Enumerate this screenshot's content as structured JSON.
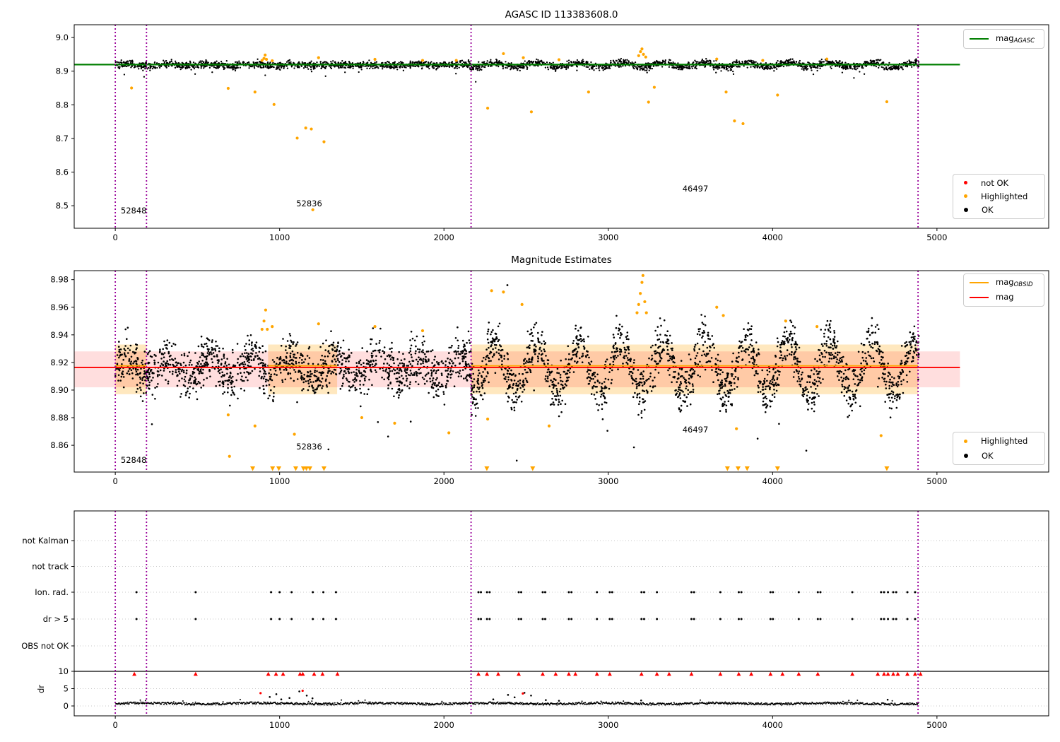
{
  "figure": {
    "background": "#ffffff"
  },
  "colors": {
    "ok": "#000000",
    "not_ok": "#ff0000",
    "highlighted": "#ffa500",
    "mag_agasc": "#007f00",
    "mag": "#ff0000",
    "mag_obsid": "#ffa500",
    "vline": "#990099",
    "grid": "#c8c8c8",
    "axis": "#000000"
  },
  "chart_data": [
    {
      "type": "scatter",
      "title": "AGASC ID 113383608.0",
      "xlim": [
        -250,
        5680
      ],
      "ylim": [
        8.433,
        9.038
      ],
      "xticks": {
        "values": [
          0,
          1000,
          2000,
          3000,
          4000,
          5000
        ],
        "labels": [
          "0",
          "1000",
          "2000",
          "3000",
          "4000",
          "5000"
        ]
      },
      "yticks": {
        "values": [
          8.5,
          8.6,
          8.7,
          8.8,
          8.9,
          9.0
        ],
        "labels": [
          "8.5",
          "8.6",
          "8.7",
          "8.8",
          "8.9",
          "9.0"
        ]
      },
      "vlines": [
        0,
        190,
        2165,
        4885
      ],
      "bands": [],
      "lines": [
        {
          "x0": -250,
          "x1": 5140,
          "y": 8.9195,
          "color": "#007f00",
          "width": 2.2,
          "name": "mag_AGASC"
        }
      ],
      "ok_series": {
        "seed": 101,
        "count": 2800,
        "x0": 0,
        "x1": 4890,
        "base": 8.9185,
        "amp_before": 0.0025,
        "amp_after": 0.0062,
        "period": 255,
        "split_x": 2165,
        "noise_std": 0.0055,
        "r": 1.15
      },
      "ok_extra": [],
      "not_ok_points": [],
      "highlighted_points": [
        [
          99,
          8.85
        ],
        [
          687,
          8.849
        ],
        [
          850,
          8.838
        ],
        [
          966,
          8.801
        ],
        [
          1107,
          8.701
        ],
        [
          1159,
          8.731
        ],
        [
          1193,
          8.728
        ],
        [
          1202,
          8.488
        ],
        [
          1270,
          8.69
        ],
        [
          2266,
          8.79
        ],
        [
          2532,
          8.779
        ],
        [
          2880,
          8.838
        ],
        [
          3245,
          8.808
        ],
        [
          3280,
          8.852
        ],
        [
          3717,
          8.838
        ],
        [
          3768,
          8.752
        ],
        [
          3820,
          8.744
        ],
        [
          4030,
          8.829
        ],
        [
          4695,
          8.809
        ],
        [
          893,
          8.932
        ],
        [
          905,
          8.938
        ],
        [
          912,
          8.948
        ],
        [
          920,
          8.935
        ],
        [
          955,
          8.931
        ],
        [
          1237,
          8.94
        ],
        [
          1580,
          8.935
        ],
        [
          1870,
          8.932
        ],
        [
          2075,
          8.932
        ],
        [
          2362,
          8.952
        ],
        [
          2483,
          8.94
        ],
        [
          2700,
          8.934
        ],
        [
          3185,
          8.946
        ],
        [
          3196,
          8.958
        ],
        [
          3205,
          8.966
        ],
        [
          3214,
          8.95
        ],
        [
          3228,
          8.942
        ],
        [
          3660,
          8.936
        ],
        [
          3940,
          8.932
        ],
        [
          4330,
          8.936
        ]
      ],
      "clipped_low_x": [],
      "annotations": [
        {
          "text": "52848",
          "x": 112,
          "y": 8.4855
        },
        {
          "text": "52836",
          "x": 1180,
          "y": 8.5065
        },
        {
          "text": "46497",
          "x": 3530,
          "y": 8.5506
        }
      ],
      "legend_lines": {
        "items": [
          {
            "main": "mag",
            "sub": "AGASC",
            "color": "#007f00"
          }
        ]
      },
      "legend_markers": {
        "items": [
          {
            "label": "not OK",
            "color": "#ff0000"
          },
          {
            "label": "Highlighted",
            "color": "#ffa500"
          },
          {
            "label": "OK",
            "color": "#000000"
          }
        ]
      }
    },
    {
      "type": "scatter",
      "title": "Magnitude Estimates",
      "xlim": [
        -250,
        5680
      ],
      "ylim": [
        8.8406,
        8.9865
      ],
      "xticks": {
        "values": [
          0,
          1000,
          2000,
          3000,
          4000,
          5000
        ],
        "labels": [
          "0",
          "1000",
          "2000",
          "3000",
          "4000",
          "5000"
        ]
      },
      "yticks": {
        "values": [
          8.86,
          8.88,
          8.9,
          8.92,
          8.94,
          8.96,
          8.98
        ],
        "labels": [
          "8.86",
          "8.88",
          "8.90",
          "8.92",
          "8.94",
          "8.96",
          "8.98"
        ]
      },
      "vlines": [
        0,
        190,
        2165,
        4885
      ],
      "bands": [
        {
          "x0": 0,
          "x1": 190,
          "y0": 8.897,
          "y1": 8.933,
          "color": "rgba(255,165,0,0.25)"
        },
        {
          "x0": 930,
          "x1": 1350,
          "y0": 8.897,
          "y1": 8.933,
          "color": "rgba(255,165,0,0.25)"
        },
        {
          "x0": 2165,
          "x1": 4885,
          "y0": 8.897,
          "y1": 8.933,
          "color": "rgba(255,165,0,0.25)"
        },
        {
          "x0": -250,
          "x1": 5140,
          "y0": 8.902,
          "y1": 8.928,
          "color": "rgba(255,0,0,0.13)"
        }
      ],
      "lines": [
        {
          "x0": -250,
          "x1": 5140,
          "y": 8.9164,
          "color": "#ff0000",
          "width": 1.8,
          "name": "mag"
        },
        {
          "x0": 0,
          "x1": 190,
          "y": 8.9176,
          "color": "#ffa500",
          "width": 1.8,
          "name": "mag_OBSID"
        },
        {
          "x0": 930,
          "x1": 1350,
          "y": 8.9176,
          "color": "#ffa500",
          "width": 1.8,
          "name": "mag_OBSID"
        },
        {
          "x0": 2165,
          "x1": 4885,
          "y": 8.9176,
          "color": "#ffa500",
          "width": 1.8,
          "name": "mag_OBSID"
        }
      ],
      "ok_series": {
        "seed": 202,
        "count": 3300,
        "x0": 0,
        "x1": 4890,
        "base": 8.9165,
        "amp_before": 0.0075,
        "amp_after": 0.0175,
        "period": 255,
        "split_x": 2165,
        "noise_std": 0.0085,
        "ymin": 8.842,
        "ymax": 8.9862,
        "r": 1.3
      },
      "ok_extra": [
        [
          2386,
          8.976
        ]
      ],
      "not_ok_points": [],
      "highlighted_points": [
        [
          893,
          8.944
        ],
        [
          905,
          8.95
        ],
        [
          915,
          8.958
        ],
        [
          925,
          8.944
        ],
        [
          955,
          8.946
        ],
        [
          1237,
          8.948
        ],
        [
          1580,
          8.946
        ],
        [
          1870,
          8.943
        ],
        [
          2290,
          8.972
        ],
        [
          2362,
          8.971
        ],
        [
          2475,
          8.962
        ],
        [
          3175,
          8.956
        ],
        [
          3185,
          8.962
        ],
        [
          3195,
          8.97
        ],
        [
          3205,
          8.978
        ],
        [
          3211,
          8.983
        ],
        [
          3222,
          8.964
        ],
        [
          3232,
          8.956
        ],
        [
          3660,
          8.96
        ],
        [
          3700,
          8.954
        ],
        [
          4080,
          8.95
        ],
        [
          4270,
          8.946
        ],
        [
          687,
          8.882
        ],
        [
          695,
          8.852
        ],
        [
          850,
          8.874
        ],
        [
          1090,
          8.868
        ],
        [
          1500,
          8.88
        ],
        [
          1700,
          8.876
        ],
        [
          2030,
          8.869
        ],
        [
          2266,
          8.879
        ],
        [
          2640,
          8.874
        ],
        [
          3780,
          8.872
        ],
        [
          4660,
          8.867
        ]
      ],
      "clipped_low_x": [
        836,
        957,
        995,
        1098,
        1145,
        1163,
        1184,
        1270,
        2261,
        2540,
        3725,
        3790,
        3845,
        4030,
        4695
      ],
      "annotations": [
        {
          "text": "52848",
          "x": 112,
          "y": 8.8493
        },
        {
          "text": "52836",
          "x": 1180,
          "y": 8.859
        },
        {
          "text": "46497",
          "x": 3530,
          "y": 8.8713
        }
      ],
      "legend_lines": {
        "items": [
          {
            "main": "mag",
            "sub": "OBSID",
            "color": "#ffa500"
          },
          {
            "main": "mag",
            "sub": "",
            "color": "#ff0000"
          }
        ]
      },
      "legend_markers": {
        "items": [
          {
            "label": "Highlighted",
            "color": "#ffa500"
          },
          {
            "label": "OK",
            "color": "#000000"
          }
        ]
      }
    },
    {
      "type": "flags",
      "xlim": [
        -250,
        5680
      ],
      "xticks": {
        "values": [
          0,
          1000,
          2000,
          3000,
          4000,
          5000
        ],
        "labels": [
          "0",
          "1000",
          "2000",
          "3000",
          "4000",
          "5000"
        ]
      },
      "vlines": [
        0,
        190,
        2165,
        4885
      ],
      "rows": [
        {
          "label": "not Kalman",
          "x": []
        },
        {
          "label": "not track",
          "x": []
        },
        {
          "label": "Ion. rad.",
          "x": [
            129,
            489,
            948,
            1000,
            1073,
            1202,
            1266,
            1343,
            2210,
            2225,
            2262,
            2278,
            2455,
            2470,
            2601,
            2616,
            2760,
            2776,
            2931,
            3009,
            3024,
            3202,
            3218,
            3296,
            3506,
            3522,
            3682,
            3794,
            3810,
            3987,
            4002,
            4159,
            4275,
            4291,
            4485,
            4660,
            4678,
            4702,
            4734,
            4752,
            4820,
            4867
          ]
        },
        {
          "label": "dr > 5",
          "x": [
            129,
            489,
            948,
            1000,
            1073,
            1202,
            1266,
            1343,
            2210,
            2225,
            2262,
            2278,
            2455,
            2470,
            2601,
            2616,
            2760,
            2776,
            2931,
            3009,
            3024,
            3202,
            3218,
            3296,
            3506,
            3522,
            3682,
            3794,
            3810,
            3987,
            4002,
            4159,
            4275,
            4291,
            4485,
            4660,
            4678,
            4702,
            4734,
            4752,
            4820,
            4867
          ]
        },
        {
          "label": "OBS not OK",
          "x": []
        }
      ],
      "dr": {
        "ylabel": "dr",
        "ticks": {
          "values": [
            10,
            5,
            0
          ],
          "labels": [
            "10",
            "5",
            "0"
          ]
        },
        "hline": 10,
        "triangle_y": 9.2,
        "trace": {
          "seed": 303,
          "x0": 0,
          "x1": 4890,
          "step": 4,
          "base": 0.4,
          "noise": 0.6,
          "wave": 0.15,
          "wave_period": 700
        },
        "spikes": [
          [
            940,
            2.6
          ],
          [
            980,
            3.4
          ],
          [
            1010,
            1.9
          ],
          [
            1060,
            2.3
          ],
          [
            1120,
            4.2
          ],
          [
            1165,
            3.0
          ],
          [
            1200,
            2.2
          ],
          [
            2300,
            1.9
          ],
          [
            2390,
            3.2
          ],
          [
            2430,
            2.5
          ],
          [
            2490,
            3.8
          ],
          [
            2530,
            3.0
          ],
          [
            2620,
            1.7
          ],
          [
            2700,
            1.5
          ],
          [
            3200,
            1.6
          ],
          [
            4700,
            1.8
          ]
        ],
        "red_points": [
          [
            884,
            3.7
          ],
          [
            2480,
            3.6
          ],
          [
            1140,
            4.4
          ]
        ],
        "red_triangles_x": [
          116,
          489,
          931,
          978,
          1021,
          1124,
          1141,
          1210,
          1261,
          1352,
          2210,
          2262,
          2330,
          2455,
          2601,
          2680,
          2760,
          2800,
          2931,
          3009,
          3202,
          3296,
          3370,
          3506,
          3682,
          3794,
          3870,
          3987,
          4060,
          4159,
          4275,
          4485,
          4640,
          4678,
          4702,
          4734,
          4762,
          4820,
          4867,
          4900
        ]
      }
    }
  ]
}
